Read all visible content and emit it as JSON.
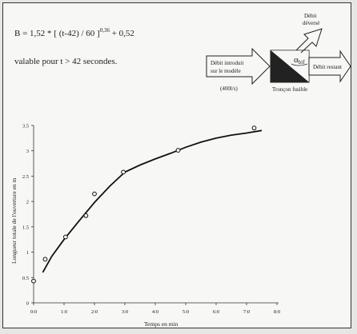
{
  "formula": {
    "prefix": "B = 1,52 * [ (t-42) / 60 ]",
    "exponent": "0,36",
    "suffix": " + 0,52"
  },
  "validity": "valable pour t > 42 secondes.",
  "diagram": {
    "input_line1": "Débit  introduit",
    "input_line2": "sur le modèle",
    "input_flow": "(400l/s)",
    "spill_line1": "Débit",
    "spill_line2": "déversé",
    "alpha": "α",
    "alpha_sub": "bif",
    "remaining": "Débit restant",
    "fuse_label": "Tronçon fusible"
  },
  "chart_data": {
    "type": "scatter",
    "xlabel": "Temps  en min",
    "ylabel": "Longueur totale de l'ouverture en m",
    "xlim": [
      0,
      8
    ],
    "ylim": [
      0,
      3.5
    ],
    "x_ticks": [
      "0:0",
      "1:0",
      "2:0",
      "3:0",
      "4:0",
      "5:0",
      "6:0",
      "7:0",
      "8:0"
    ],
    "y_ticks": [
      "0",
      "0.5",
      "1",
      "1.5",
      "2",
      "2.5",
      "3",
      "3.5"
    ],
    "points": [
      {
        "x": 0.0,
        "y": 0.43
      },
      {
        "x": 0.38,
        "y": 0.86
      },
      {
        "x": 1.05,
        "y": 1.3
      },
      {
        "x": 1.72,
        "y": 1.72
      },
      {
        "x": 2.0,
        "y": 2.15
      },
      {
        "x": 2.95,
        "y": 2.58
      },
      {
        "x": 4.75,
        "y": 3.01
      },
      {
        "x": 7.25,
        "y": 3.45
      }
    ],
    "curve": [
      {
        "x": 0.3,
        "y": 0.6
      },
      {
        "x": 0.6,
        "y": 0.92
      },
      {
        "x": 1.0,
        "y": 1.25
      },
      {
        "x": 1.5,
        "y": 1.62
      },
      {
        "x": 2.0,
        "y": 1.98
      },
      {
        "x": 2.5,
        "y": 2.3
      },
      {
        "x": 3.0,
        "y": 2.58
      },
      {
        "x": 3.5,
        "y": 2.72
      },
      {
        "x": 4.0,
        "y": 2.84
      },
      {
        "x": 4.5,
        "y": 2.95
      },
      {
        "x": 5.0,
        "y": 3.07
      },
      {
        "x": 5.5,
        "y": 3.17
      },
      {
        "x": 6.0,
        "y": 3.25
      },
      {
        "x": 6.5,
        "y": 3.31
      },
      {
        "x": 7.0,
        "y": 3.35
      },
      {
        "x": 7.5,
        "y": 3.4
      }
    ],
    "grid": false,
    "legend": "none"
  }
}
